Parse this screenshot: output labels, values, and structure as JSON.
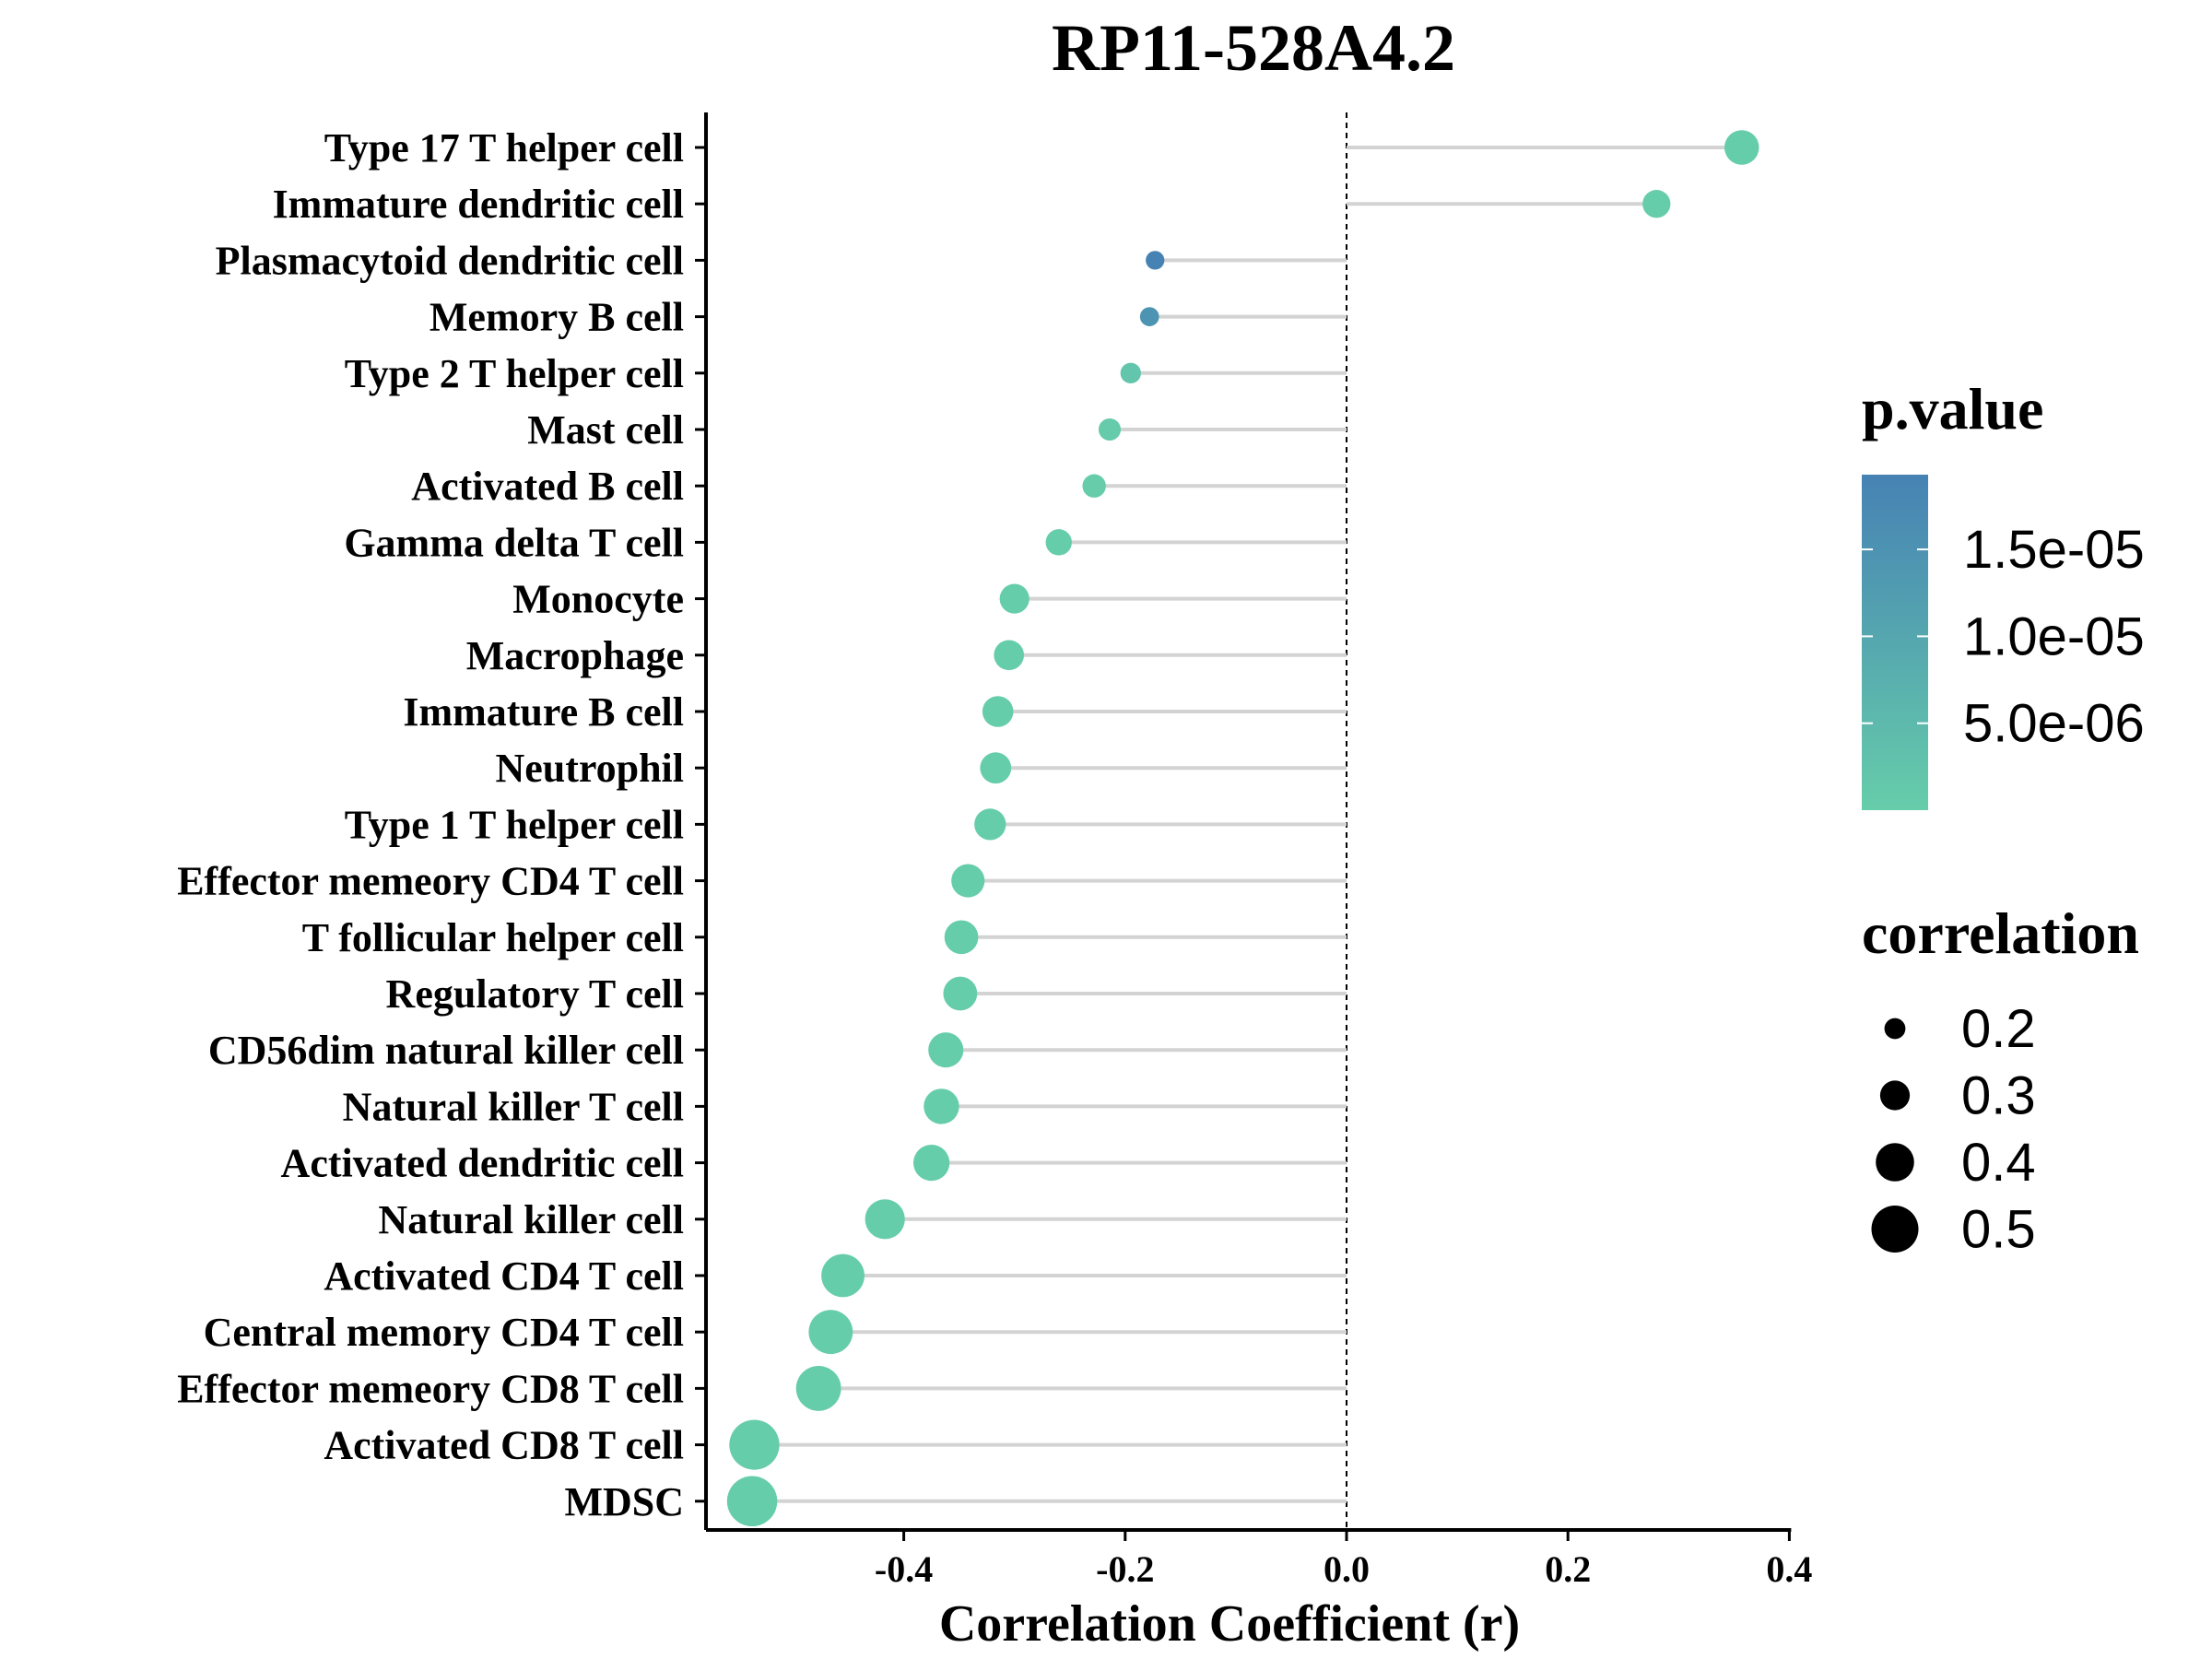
{
  "chart_data": {
    "type": "lollipop",
    "title": "RP11-528A4.2",
    "xlabel": "Correlation Coefficient (r)",
    "ylabel": "",
    "xlim": [
      -0.58,
      0.4
    ],
    "xticks": [
      -0.4,
      -0.2,
      0.0,
      0.2,
      0.4
    ],
    "xtick_labels": [
      "-0.4",
      "-0.2",
      "0.0",
      "0.2",
      "0.4"
    ],
    "reference_line": 0,
    "grid": false,
    "categories": [
      "Type 17 T helper cell",
      "Immature dendritic cell",
      "Plasmacytoid dendritic cell",
      "Memory B cell",
      "Type 2 T helper cell",
      "Mast cell",
      "Activated B cell",
      "Gamma delta T cell",
      "Monocyte",
      "Macrophage",
      "Immature  B cell",
      "Neutrophil",
      "Type 1 T helper cell",
      "Effector memeory CD4 T cell",
      "T follicular helper cell",
      "Regulatory T cell",
      "CD56dim natural killer cell",
      "Natural killer T cell",
      "Activated dendritic cell",
      "Natural killer cell",
      "Activated CD4 T cell",
      "Central memory CD4 T cell",
      "Effector memeory CD8 T cell",
      "Activated CD8 T cell",
      "MDSC"
    ],
    "values": [
      0.357,
      0.28,
      -0.173,
      -0.178,
      -0.195,
      -0.214,
      -0.228,
      -0.26,
      -0.3,
      -0.305,
      -0.315,
      -0.317,
      -0.322,
      -0.342,
      -0.348,
      -0.349,
      -0.362,
      -0.366,
      -0.375,
      -0.417,
      -0.455,
      -0.466,
      -0.477,
      -0.535,
      -0.537
    ],
    "pvalues": [
      0.0,
      0.0,
      1.9e-05,
      1.5e-05,
      2e-06,
      5e-07,
      2e-07,
      0.0,
      0.0,
      0.0,
      0.0,
      0.0,
      0.0,
      0.0,
      0.0,
      0.0,
      0.0,
      0.0,
      0.0,
      0.0,
      0.0,
      0.0,
      0.0,
      0.0,
      0.0
    ],
    "size_by": "abs(r)",
    "color_by": "p.value",
    "legend_placement": "right",
    "color_legend": {
      "title": "p.value",
      "low_color": "#66CDAA",
      "high_color": "#4682B4",
      "range": [
        0,
        1.93e-05
      ],
      "breaks": [
        1.5e-05,
        1e-05,
        5e-06
      ],
      "labels": [
        "1.5e-05",
        "1.0e-05",
        "5.0e-06"
      ]
    },
    "size_legend": {
      "title": "correlation",
      "values": [
        0.2,
        0.3,
        0.4,
        0.5
      ],
      "labels": [
        "0.2",
        "0.3",
        "0.4",
        "0.5"
      ]
    },
    "colors": {
      "stem": "#d3d3d3",
      "axis": "#000000",
      "reference": "#000000",
      "legend_dot": "#000000"
    }
  }
}
